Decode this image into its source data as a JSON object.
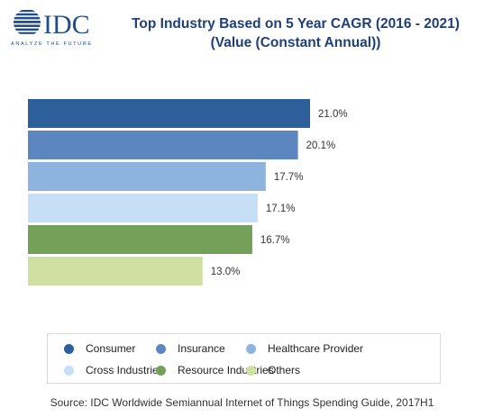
{
  "logo": {
    "text": "IDC",
    "tagline": "ANALYZE THE FUTURE"
  },
  "chart_data": {
    "type": "bar",
    "orientation": "horizontal",
    "title": "Top Industry Based on 5 Year CAGR (2016 - 2021)",
    "subtitle": "(Value (Constant Annual))",
    "categories": [
      "Consumer",
      "Insurance",
      "Healthcare Provider",
      "Cross Industries",
      "Resource Industries",
      "Others"
    ],
    "values": [
      21.0,
      20.1,
      17.7,
      17.1,
      16.7,
      13.0
    ],
    "data_labels": [
      "21.0%",
      "20.1%",
      "17.7%",
      "17.1%",
      "16.7%",
      "13.0%"
    ],
    "colors": [
      "#2d5f9b",
      "#5b86bf",
      "#8fb3df",
      "#c6def6",
      "#75a05a",
      "#cfe0a2"
    ],
    "xlim": [
      0,
      21.0
    ],
    "grid": false,
    "axes_visible": false,
    "legend_position": "bottom"
  },
  "source": "Source: IDC Worldwide Semiannual Internet of Things Spending Guide, 2017H1"
}
